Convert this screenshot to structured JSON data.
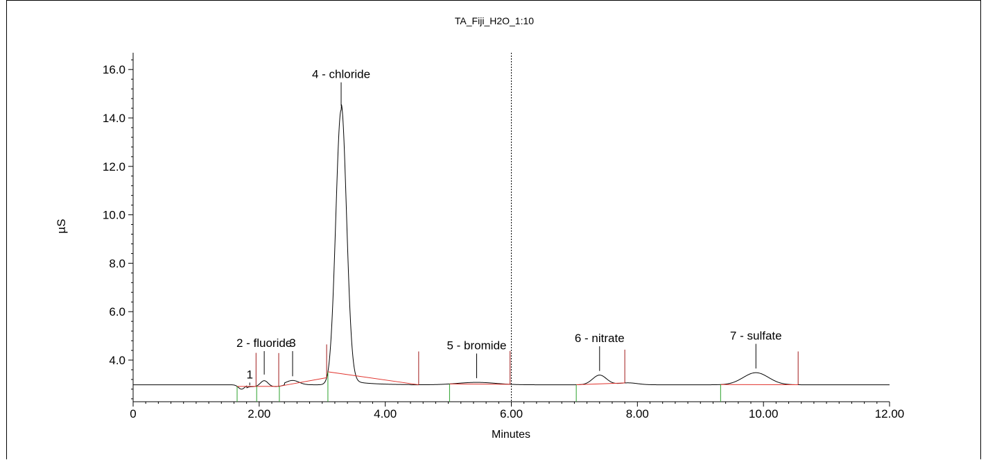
{
  "chart_data": {
    "type": "line",
    "title": "TA_Fiji_H2O_1:10",
    "xlabel": "Minutes",
    "ylabel": "µS",
    "xlim": [
      0,
      12
    ],
    "ylim": [
      2.0,
      16.7
    ],
    "x_ticks": [
      {
        "value": 0,
        "label": "0"
      },
      {
        "value": 2,
        "label": "2.00"
      },
      {
        "value": 4,
        "label": "4.00"
      },
      {
        "value": 6,
        "label": "6.00"
      },
      {
        "value": 8,
        "label": "8.00"
      },
      {
        "value": 10,
        "label": "10.00"
      },
      {
        "value": 12,
        "label": "12.00"
      }
    ],
    "y_ticks": [
      {
        "value": 4,
        "label": "4.0"
      },
      {
        "value": 6,
        "label": "6.0"
      },
      {
        "value": 8,
        "label": "8.0"
      },
      {
        "value": 10,
        "label": "10.0"
      },
      {
        "value": 12,
        "label": "12.0"
      },
      {
        "value": 14,
        "label": "14.0"
      },
      {
        "value": 16,
        "label": "16.0"
      }
    ],
    "cursor_x": 6.0,
    "baseline": 2.98,
    "peaks": [
      {
        "label": "1",
        "rt": 1.85,
        "height": 0.0,
        "label_y": 3.3
      },
      {
        "label": "2 - fluoride",
        "rt": 2.08,
        "height": 0.25,
        "label_y": 4.6
      },
      {
        "label": "3",
        "rt": 2.53,
        "height": 0.18,
        "label_y": 4.6
      },
      {
        "label": "4 - chloride",
        "rt": 3.3,
        "height": 11.35,
        "label_y": 15.7
      },
      {
        "label": "5 - bromide",
        "rt": 5.45,
        "height": 0.1,
        "label_y": 4.5
      },
      {
        "label": "6 - nitrate",
        "rt": 7.4,
        "height": 0.4,
        "label_y": 4.8
      },
      {
        "label": "7 - sulfate",
        "rt": 9.88,
        "height": 0.5,
        "label_y": 4.9
      }
    ],
    "peak_start_markers": [
      1.65,
      1.96,
      2.32,
      3.09,
      5.02,
      7.03,
      9.32
    ],
    "peak_end_markers": [
      1.95,
      2.31,
      3.07,
      4.53,
      5.98,
      7.8,
      10.55
    ]
  }
}
